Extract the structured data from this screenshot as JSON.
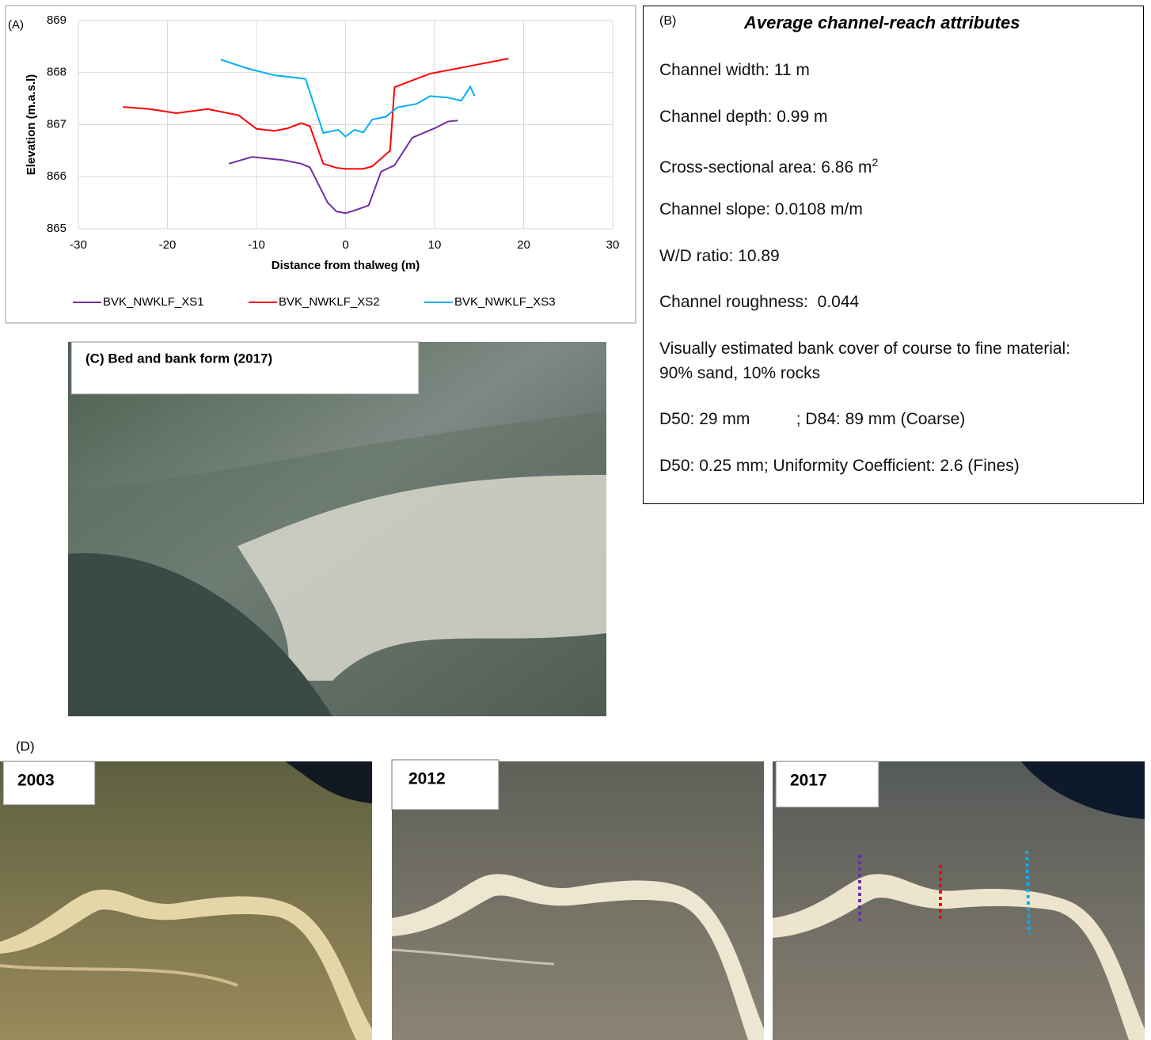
{
  "panel_a": {
    "label": "(A)"
  },
  "chart_data": {
    "type": "line",
    "x_label": "Distance from thalweg (m)",
    "y_label": "Elevation (m.a.s.l)",
    "xlim": [
      -30,
      30
    ],
    "xticks": [
      -30,
      -20,
      -10,
      0,
      10,
      20,
      30
    ],
    "ylim": [
      865,
      869
    ],
    "yticks": [
      865,
      866,
      867,
      868,
      869
    ],
    "grid": true,
    "legend": "bottom",
    "series": [
      {
        "name": "BVK_NWKLF_XS1",
        "color": "#7030a0",
        "x": [
          -13.1,
          -10.5,
          -7,
          -5,
          -4,
          -2,
          -1,
          0,
          1,
          2.6,
          4,
          5.5,
          7.5,
          10,
          11.5,
          12.6
        ],
        "values": [
          866.25,
          866.38,
          866.32,
          866.25,
          866.18,
          865.5,
          865.33,
          865.3,
          865.35,
          865.45,
          866.1,
          866.22,
          866.75,
          866.93,
          867.06,
          867.08
        ]
      },
      {
        "name": "BVK_NWKLF_XS2",
        "color": "#ff0000",
        "x": [
          -25,
          -22,
          -19,
          -15.5,
          -12,
          -10,
          -8,
          -6.5,
          -5,
          -4,
          -2.5,
          -1,
          0,
          2,
          3,
          5,
          5.5,
          7.5,
          9.5,
          18.3
        ],
        "values": [
          867.34,
          867.3,
          867.22,
          867.3,
          867.18,
          866.92,
          866.88,
          866.93,
          867.03,
          866.97,
          866.25,
          866.17,
          866.15,
          866.15,
          866.2,
          866.5,
          867.72,
          867.85,
          867.98,
          868.27
        ]
      },
      {
        "name": "BVK_NWKLF_XS3",
        "color": "#00b0f0",
        "x": [
          -14,
          -11,
          -8,
          -4.5,
          -2.5,
          -0.8,
          0,
          1,
          2,
          3,
          4.5,
          5.8,
          8,
          9.5,
          11.5,
          13,
          14,
          14.5
        ],
        "values": [
          868.25,
          868.08,
          867.95,
          867.88,
          866.84,
          866.9,
          866.77,
          866.9,
          866.85,
          867.1,
          867.15,
          867.33,
          867.4,
          867.55,
          867.52,
          867.46,
          867.73,
          867.55
        ]
      }
    ]
  },
  "panel_b": {
    "label": "(B)",
    "title": "Average channel-reach attributes",
    "lines": [
      "Channel width: 11 m",
      "Channel depth: 0.99 m",
      {
        "text": "Cross-sectional area: 6.86 m",
        "sup": "2"
      },
      "Channel slope: 0.0108 m/m",
      "W/D ratio: 10.89",
      "Channel roughness:  0.044",
      "Visually estimated bank cover of course to fine material: 90% sand, 10% rocks",
      "D50: 29 mm          ; D84: 89 mm (Coarse)",
      "D50: 0.25 mm; Uniformity Coefficient: 2.6 (Fines)"
    ]
  },
  "panel_c": {
    "label": "(C) Bed and bank form (2017)"
  },
  "panel_d": {
    "label": "(D)",
    "years": [
      "2003",
      "2012",
      "2017"
    ]
  }
}
